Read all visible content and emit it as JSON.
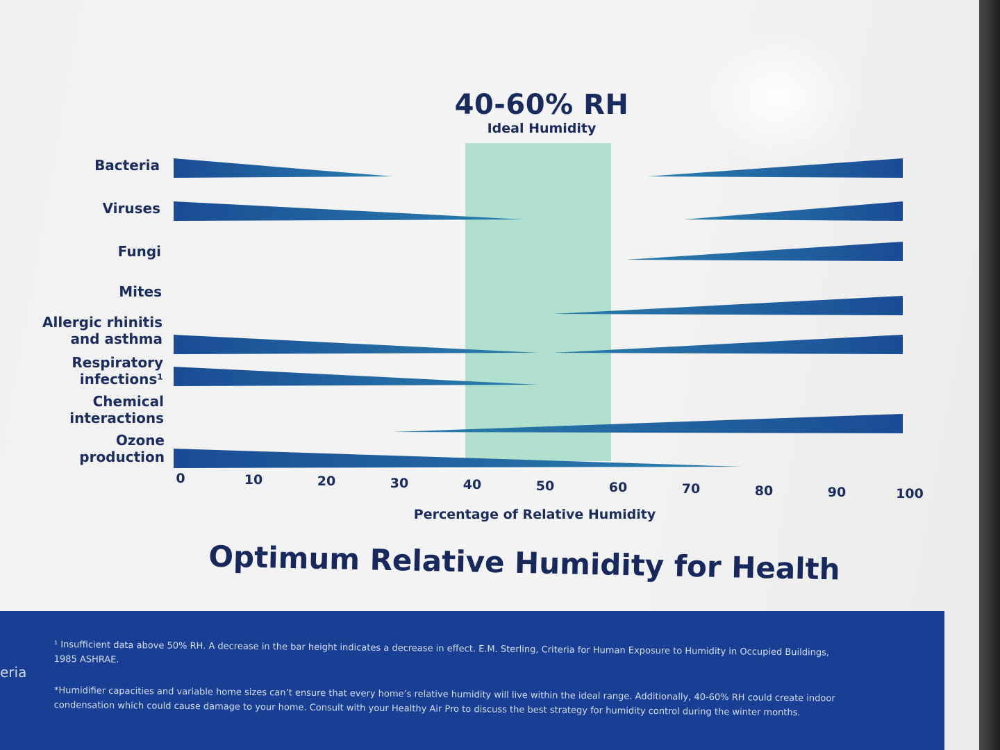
{
  "header": {
    "range_title": "40-60% RH",
    "range_subtitle": "Ideal Humidity"
  },
  "chart_data": {
    "type": "bar",
    "title": "Optimum Relative Humidity for Health",
    "xlabel": "Percentage of Relative Humidity",
    "ylabel": "",
    "xlim": [
      0,
      100
    ],
    "x_ticks": [
      "0",
      "10",
      "20",
      "30",
      "40",
      "50",
      "60",
      "70",
      "80",
      "90",
      "100"
    ],
    "highlight_band": {
      "from": 40,
      "to": 60,
      "label": "40-60% RH",
      "color": "#a6dcc8"
    },
    "categories": [
      "Bacteria",
      "Viruses",
      "Fungi",
      "Mites",
      "Allergic rhinitis\nand asthma",
      "Respiratory\ninfections¹",
      "Chemical\ninteractions",
      "Ozone\nproduction"
    ],
    "series": [
      {
        "bars": [
          {
            "category": 0,
            "from": 0,
            "to": 30,
            "thick_end": "left"
          },
          {
            "category": 0,
            "from": 65,
            "to": 100,
            "thick_end": "right"
          },
          {
            "category": 1,
            "from": 0,
            "to": 48,
            "thick_end": "left"
          },
          {
            "category": 1,
            "from": 70,
            "to": 100,
            "thick_end": "right"
          },
          {
            "category": 2,
            "from": 62,
            "to": 100,
            "thick_end": "right"
          },
          {
            "category": 3,
            "from": 52,
            "to": 100,
            "thick_end": "right"
          },
          {
            "category": 4,
            "from": 0,
            "to": 50,
            "thick_end": "left"
          },
          {
            "category": 4,
            "from": 52,
            "to": 100,
            "thick_end": "right"
          },
          {
            "category": 5,
            "from": 0,
            "to": 50,
            "thick_end": "left"
          },
          {
            "category": 6,
            "from": 30,
            "to": 100,
            "thick_end": "right"
          },
          {
            "category": 7,
            "from": 0,
            "to": 78,
            "thick_end": "left"
          }
        ]
      }
    ],
    "bar_color": "#1a4b94",
    "bar_color_tip": "#2a7fae"
  },
  "footnotes": {
    "note1": "¹ Insufficient data above 50% RH. A decrease in the bar height indicates a decrease in effect. E.M. Sterling, Criteria for Human Exposure to Humidity in Occupied Buildings, 1985 ASHRAE.",
    "note2": "*Humidifier capacities and variable home sizes can’t ensure that every home’s relative humidity will live within the ideal range. Additionally, 40-60% RH could create indoor condensation which could cause damage to your home. Consult with your Healthy Air Pro to discuss the best strategy for humidity control during the winter months."
  },
  "side_fragment": "eria"
}
